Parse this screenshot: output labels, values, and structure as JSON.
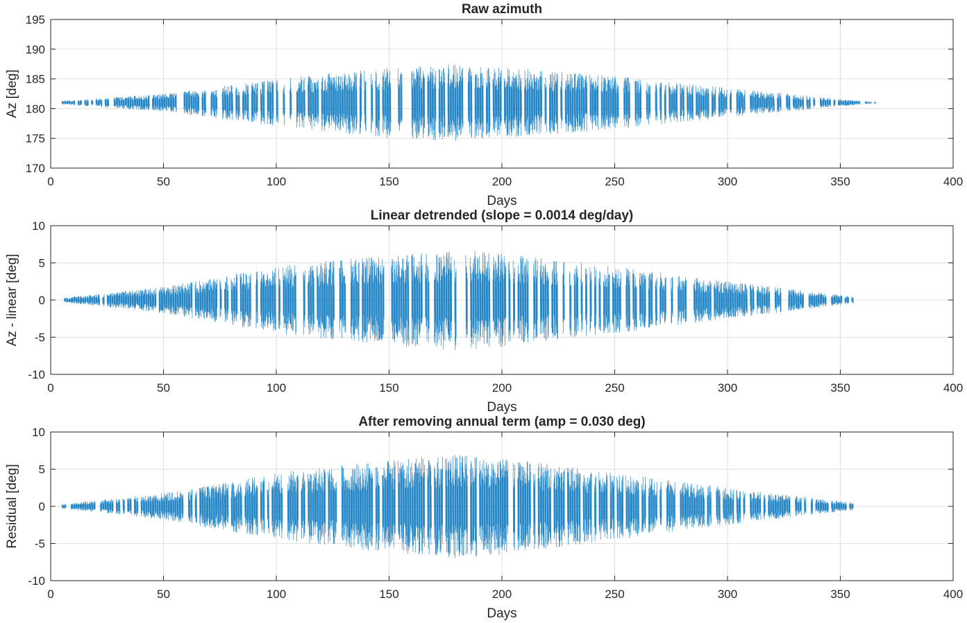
{
  "chart_data": [
    {
      "type": "line",
      "title": "Raw azimuth",
      "xlabel": "Days",
      "ylabel": "Az [deg]",
      "xlim": [
        0,
        400
      ],
      "ylim": [
        170,
        195
      ],
      "xticks": [
        0,
        50,
        100,
        150,
        200,
        250,
        300,
        350,
        400
      ],
      "yticks": [
        170,
        175,
        180,
        185,
        190,
        195
      ],
      "grid": true,
      "color": "#0072BD",
      "offset": 181.0,
      "sample_days": [
        5,
        50,
        100,
        150,
        180,
        200,
        250,
        300,
        350,
        365
      ],
      "sample_envelope": [
        0.3,
        1.5,
        4.0,
        6.0,
        6.5,
        6.0,
        4.5,
        2.5,
        0.6,
        0.1
      ]
    },
    {
      "type": "line",
      "title": "Linear detrended (slope = 0.0014 deg/day)",
      "xlabel": "Days",
      "ylabel": "Az - linear [deg]",
      "xlim": [
        0,
        400
      ],
      "ylim": [
        -10,
        10
      ],
      "xticks": [
        0,
        50,
        100,
        150,
        200,
        250,
        300,
        350,
        400
      ],
      "yticks": [
        -10,
        -5,
        0,
        5,
        10
      ],
      "grid": true,
      "color": "#0072BD",
      "offset": 0.0,
      "sample_days": [
        5,
        50,
        100,
        150,
        180,
        200,
        250,
        300,
        355
      ],
      "sample_envelope": [
        0.3,
        1.8,
        4.5,
        6.2,
        6.8,
        6.3,
        4.5,
        2.5,
        0.5
      ]
    },
    {
      "type": "line",
      "title": "After removing annual term (amp = 0.030 deg)",
      "xlabel": "Days",
      "ylabel": "Residual [deg]",
      "xlim": [
        0,
        400
      ],
      "ylim": [
        -10,
        10
      ],
      "xticks": [
        0,
        50,
        100,
        150,
        200,
        250,
        300,
        350,
        400
      ],
      "yticks": [
        -10,
        -5,
        0,
        5,
        10
      ],
      "grid": true,
      "color": "#0072BD",
      "offset": 0.0,
      "sample_days": [
        5,
        50,
        100,
        150,
        180,
        200,
        250,
        300,
        355
      ],
      "sample_envelope": [
        0.3,
        1.8,
        4.5,
        6.3,
        7.0,
        6.5,
        4.5,
        2.5,
        0.5
      ]
    }
  ]
}
